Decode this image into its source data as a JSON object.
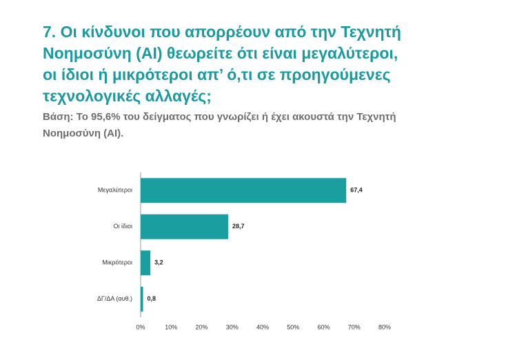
{
  "chart_data": {
    "type": "hbar",
    "title": [
      "7. Οι κίνδυνοι που απορρέουν από την Τεχνητή",
      "Νοημοσύνη (AI) θεωρείτε ότι είναι μεγαλύτεροι,",
      "οι ίδιοι ή μικρότεροι απ’ ό,τι σε προηγούμενες",
      "τεχνολογικές αλλαγές;"
    ],
    "subtitle": [
      "Βάση: Το 95,6% του δείγματος που γνωρίζει ή έχει ακουστά την Τεχνητή",
      "Νοημοσύνη (AI)."
    ],
    "categories": [
      "Μεγαλύτεροι",
      "Οι ίδιοι",
      "Μικρότεροι",
      "ΔΓ/ΔΑ (αυθ.)"
    ],
    "values": [
      67.4,
      28.7,
      3.2,
      0.8
    ],
    "value_labels": [
      "67,4",
      "28,7",
      "3,2",
      "0,8"
    ],
    "color": "#1a9e9f",
    "xlim": [
      0,
      80
    ],
    "xticks": [
      {
        "value": 0,
        "label": "0%"
      },
      {
        "value": 10,
        "label": "10%"
      },
      {
        "value": 20,
        "label": "20%"
      },
      {
        "value": 30,
        "label": "30%"
      },
      {
        "value": 40,
        "label": "40%"
      },
      {
        "value": 50,
        "label": "50%"
      },
      {
        "value": 60,
        "label": "60%"
      },
      {
        "value": 70,
        "label": "70%"
      },
      {
        "value": 80,
        "label": "80%"
      }
    ]
  }
}
